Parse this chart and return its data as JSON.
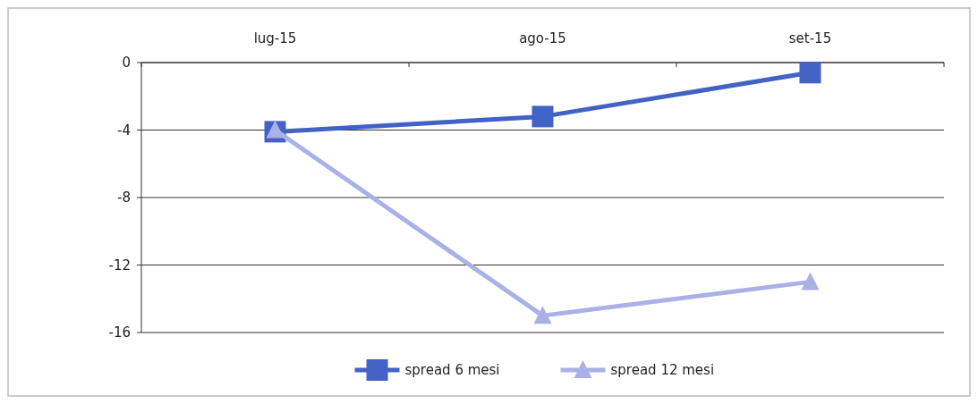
{
  "chart_data": {
    "type": "line",
    "categories": [
      "lug-15",
      "ago-15",
      "set-15"
    ],
    "series": [
      {
        "name": "spread 6 mesi",
        "color": "#4262c6",
        "marker": "square",
        "values": [
          -4.1,
          -3.2,
          -0.6
        ]
      },
      {
        "name": "spread 12 mesi",
        "color": "#a9b1e6",
        "marker": "triangle",
        "values": [
          -4.0,
          -15.0,
          -13.0
        ]
      }
    ],
    "ylim": [
      -16,
      0
    ],
    "yticks": [
      0,
      -4,
      -8,
      -12,
      -16
    ],
    "grid": "y",
    "legend": "bottom"
  }
}
